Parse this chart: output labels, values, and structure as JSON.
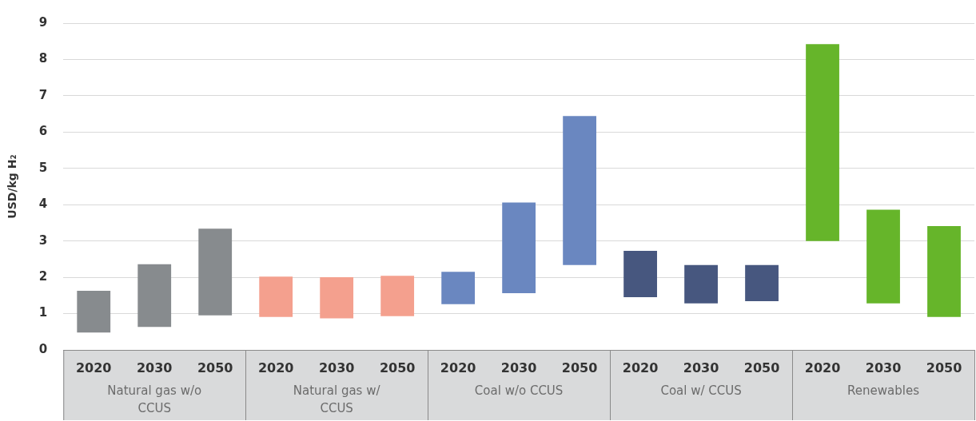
{
  "chart_data": {
    "type": "bar",
    "ylabel": "USD/kg H₂",
    "categories": [
      "2020",
      "2030",
      "2050",
      "2020",
      "2030",
      "2050",
      "2020",
      "2030",
      "2050",
      "2020",
      "2030",
      "2050",
      "2020",
      "2030",
      "2050"
    ],
    "series": [
      {
        "color": "#878b8e",
        "base": [
          0.48,
          0.63,
          0.95,
          null,
          null,
          null,
          null,
          null,
          null,
          null,
          null,
          null,
          null,
          null,
          null
        ],
        "values": [
          1.15,
          1.73,
          2.39,
          null,
          null,
          null,
          null,
          null,
          null,
          null,
          null,
          null,
          null,
          null,
          null
        ]
      },
      {
        "color": "#f4a08e",
        "base": [
          null,
          null,
          null,
          0.91,
          0.87,
          0.93,
          null,
          null,
          null,
          null,
          null,
          null,
          null,
          null,
          null
        ],
        "values": [
          null,
          null,
          null,
          1.11,
          1.13,
          1.11,
          null,
          null,
          null,
          null,
          null,
          null,
          null,
          null,
          null
        ]
      },
      {
        "color": "#6a87c0",
        "base": [
          null,
          null,
          null,
          null,
          null,
          null,
          1.26,
          1.56,
          2.34,
          null,
          null,
          null,
          null,
          null,
          null
        ],
        "values": [
          null,
          null,
          null,
          null,
          null,
          null,
          0.89,
          2.5,
          4.1,
          null,
          null,
          null,
          null,
          null,
          null
        ]
      },
      {
        "color": "#47577f",
        "base": [
          null,
          null,
          null,
          null,
          null,
          null,
          null,
          null,
          null,
          1.45,
          1.28,
          1.34,
          null,
          null,
          null
        ],
        "values": [
          null,
          null,
          null,
          null,
          null,
          null,
          null,
          null,
          null,
          1.28,
          1.06,
          1.0,
          null,
          null,
          null
        ]
      },
      {
        "color": "#66b52a",
        "base": [
          null,
          null,
          null,
          null,
          null,
          null,
          null,
          null,
          null,
          null,
          null,
          null,
          3.0,
          1.28,
          0.91
        ],
        "values": [
          null,
          null,
          null,
          null,
          null,
          null,
          null,
          null,
          null,
          null,
          null,
          null,
          5.42,
          2.58,
          2.5
        ]
      }
    ],
    "annotations": [
      "Natural gas w/o CCUS",
      "Natural gas w/ CCUS",
      "Coal w/o CCUS",
      "Coal w/ CCUS",
      "Renewables"
    ],
    "ylim": [
      0,
      9
    ],
    "yticks": [
      0,
      1,
      2,
      3,
      4,
      5,
      6,
      7,
      8,
      9
    ],
    "grid": "y",
    "legend": false
  }
}
